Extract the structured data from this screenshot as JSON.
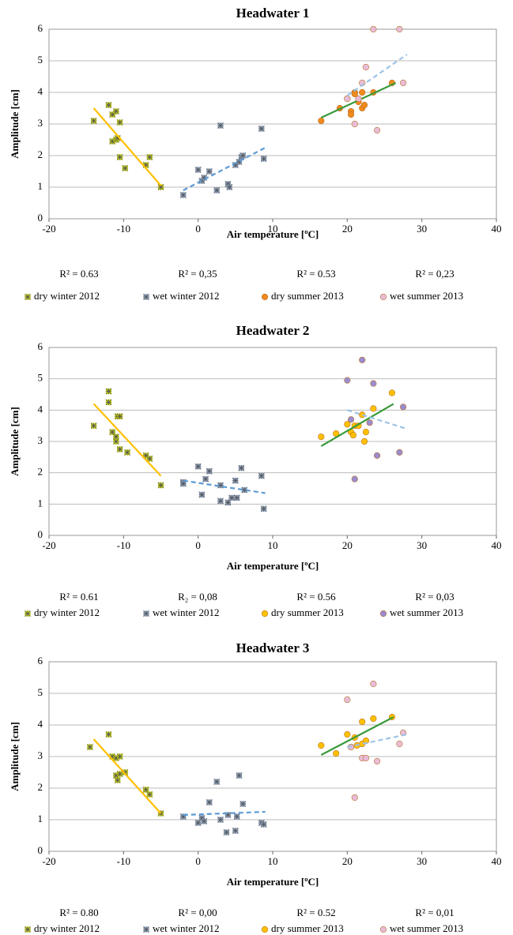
{
  "chart_data": [
    {
      "type": "scatter",
      "title": "Headwater 1",
      "xlabel": "Air temperature [ºC]",
      "ylabel": "Amplitude  [cm]",
      "xlim": [
        -20,
        40
      ],
      "ylim": [
        0,
        6
      ],
      "xticks": [
        -20,
        -10,
        0,
        10,
        20,
        30,
        40
      ],
      "yticks": [
        0,
        1,
        2,
        3,
        4,
        5,
        6
      ],
      "grid": true,
      "series": [
        {
          "name": "dry winter 2012",
          "marker": "asterisk",
          "color": "#c8d400",
          "r2_label": "R² = 0.63",
          "x": [
            -14,
            -12,
            -11.5,
            -11,
            -10.5,
            -11.5,
            -11,
            -10.8,
            -10.5,
            -9.8,
            -7,
            -6.5,
            -5
          ],
          "values": [
            3.1,
            3.6,
            3.3,
            3.4,
            3.05,
            2.45,
            2.5,
            2.55,
            1.95,
            1.6,
            1.7,
            1.95,
            1.0
          ],
          "trend": {
            "x": [
              -14,
              -5
            ],
            "values": [
              3.5,
              1.05
            ],
            "color": "#ffc000",
            "dashed": false
          }
        },
        {
          "name": "wet winter 2012",
          "marker": "asterisk",
          "color": "#8fa6c8",
          "r2_label": "R² = 0,35",
          "x": [
            -2,
            0,
            0.5,
            0.8,
            1.5,
            2.5,
            3,
            4,
            4.2,
            5,
            5.5,
            5.8,
            6,
            8.5,
            8.8
          ],
          "values": [
            0.75,
            1.55,
            1.2,
            1.3,
            1.5,
            0.9,
            2.95,
            1.1,
            1.0,
            1.7,
            1.8,
            1.95,
            2.0,
            2.85,
            1.9
          ],
          "trend": {
            "x": [
              -2,
              9
            ],
            "values": [
              0.9,
              2.25
            ],
            "color": "#5b9bd5",
            "dashed": true
          }
        },
        {
          "name": "dry summer 2013",
          "marker": "circle",
          "color": "#f08a1c",
          "r2_label": "R² = 0.53",
          "x": [
            16.5,
            19,
            20,
            20.5,
            20.5,
            21,
            21,
            21.5,
            22,
            22,
            22.3,
            23.5,
            26
          ],
          "values": [
            3.1,
            3.5,
            3.8,
            3.4,
            3.3,
            4.0,
            3.95,
            3.7,
            3.5,
            4.0,
            3.6,
            4.0,
            4.3
          ],
          "trend": {
            "x": [
              16.5,
              26.5
            ],
            "values": [
              3.2,
              4.3
            ],
            "color": "#3a9a3a",
            "dashed": false
          }
        },
        {
          "name": "wet summer 2013",
          "marker": "circle",
          "color": "#e8bcd8",
          "r2_label": "R² = 0,23",
          "x": [
            20,
            21,
            21.5,
            22,
            22.5,
            23.5,
            24,
            27,
            27.5
          ],
          "values": [
            3.8,
            3.0,
            3.8,
            4.3,
            4.8,
            6.0,
            2.8,
            6.0,
            4.3
          ],
          "trend": {
            "x": [
              20,
              28
            ],
            "values": [
              3.9,
              5.2
            ],
            "color": "#9dc3e6",
            "dashed": true
          }
        }
      ]
    },
    {
      "type": "scatter",
      "title": "Headwater 2",
      "xlabel": "Air temperature [ºC]",
      "ylabel": "Amplitude  [cm]",
      "xlim": [
        -20,
        40
      ],
      "ylim": [
        0,
        6
      ],
      "xticks": [
        -20,
        -10,
        0,
        10,
        20,
        30,
        40
      ],
      "yticks": [
        0,
        1,
        2,
        3,
        4,
        5,
        6
      ],
      "grid": true,
      "series": [
        {
          "name": "dry winter 2012",
          "marker": "asterisk",
          "color": "#c8d400",
          "r2_label": "R² = 0.61",
          "x": [
            -14,
            -12,
            -12,
            -11.5,
            -11,
            -10.8,
            -10.5,
            -11,
            -10.5,
            -9.5,
            -7,
            -6.5,
            -5
          ],
          "values": [
            3.5,
            4.6,
            4.25,
            3.3,
            3.15,
            3.8,
            3.8,
            3.0,
            2.75,
            2.65,
            2.55,
            2.45,
            1.6
          ],
          "trend": {
            "x": [
              -14,
              -5
            ],
            "values": [
              4.2,
              1.9
            ],
            "color": "#ffc000",
            "dashed": false
          }
        },
        {
          "name": "wet winter 2012",
          "marker": "asterisk",
          "color": "#8fa6c8",
          "r2_label": "R₂ = 0,08",
          "x": [
            -2,
            -2,
            0,
            0.5,
            1,
            1.5,
            3,
            3,
            4,
            4.5,
            5,
            5.2,
            5.8,
            6.2,
            8.5,
            8.8
          ],
          "values": [
            1.7,
            1.65,
            2.2,
            1.3,
            1.8,
            2.05,
            1.1,
            1.6,
            1.05,
            1.2,
            1.75,
            1.2,
            2.15,
            1.45,
            1.9,
            0.85
          ],
          "trend": {
            "x": [
              -2,
              9
            ],
            "values": [
              1.75,
              1.35
            ],
            "color": "#5b9bd5",
            "dashed": true
          }
        },
        {
          "name": "dry summer 2013",
          "marker": "circle",
          "color": "#ffc000",
          "r2_label": "R² = 0.56",
          "x": [
            16.5,
            18.5,
            20,
            20.5,
            20.8,
            21,
            21.5,
            22,
            22.3,
            22.5,
            23.5,
            26
          ],
          "values": [
            3.15,
            3.25,
            3.55,
            3.3,
            3.2,
            3.5,
            3.5,
            3.85,
            3.0,
            3.3,
            4.05,
            4.55
          ],
          "trend": {
            "x": [
              16.5,
              26.2
            ],
            "values": [
              2.85,
              4.2
            ],
            "color": "#3a9a3a",
            "dashed": false
          }
        },
        {
          "name": "wet summer 2013",
          "marker": "circle",
          "color": "#9b8ccf",
          "r2_label": "R² = 0,03",
          "x": [
            20,
            20.5,
            21,
            22,
            23,
            23.5,
            24,
            27,
            27.5
          ],
          "values": [
            4.95,
            3.7,
            1.8,
            5.6,
            3.6,
            4.85,
            2.55,
            2.65,
            4.1
          ],
          "trend": {
            "x": [
              20,
              28
            ],
            "values": [
              4.0,
              3.4
            ],
            "color": "#9dc3e6",
            "dashed": true
          }
        }
      ]
    },
    {
      "type": "scatter",
      "title": "Headwater 3",
      "xlabel": "Air temperature [ºC]",
      "ylabel": "Amplitude  [cm]",
      "xlim": [
        -20,
        40
      ],
      "ylim": [
        0,
        6
      ],
      "xticks": [
        -20,
        -10,
        0,
        10,
        20,
        30,
        40
      ],
      "yticks": [
        0,
        1,
        2,
        3,
        4,
        5,
        6
      ],
      "grid": true,
      "series": [
        {
          "name": "dry winter 2012",
          "marker": "asterisk",
          "color": "#c8d400",
          "r2_label": "R² = 0.80",
          "x": [
            -14.5,
            -12,
            -11.5,
            -11,
            -10.5,
            -11,
            -10.8,
            -10.5,
            -9.8,
            -7,
            -6.5,
            -5
          ],
          "values": [
            3.3,
            3.7,
            3.0,
            2.95,
            3.0,
            2.4,
            2.25,
            2.45,
            2.5,
            1.95,
            1.8,
            1.2
          ],
          "trend": {
            "x": [
              -14,
              -5
            ],
            "values": [
              3.55,
              1.2
            ],
            "color": "#ffc000",
            "dashed": false
          }
        },
        {
          "name": "wet winter 2012",
          "marker": "asterisk",
          "color": "#8fa6c8",
          "r2_label": "R² = 0,00",
          "x": [
            -2,
            0,
            0.5,
            0.8,
            1.5,
            2.5,
            3,
            3.8,
            4,
            5,
            5.2,
            5.5,
            6,
            8.5,
            8.8
          ],
          "values": [
            1.1,
            0.9,
            1.05,
            0.95,
            1.55,
            2.2,
            1.0,
            0.6,
            1.15,
            0.65,
            1.1,
            2.4,
            1.5,
            0.9,
            0.85
          ],
          "trend": {
            "x": [
              -2,
              9
            ],
            "values": [
              1.15,
              1.25
            ],
            "color": "#5b9bd5",
            "dashed": true
          }
        },
        {
          "name": "dry summer 2013",
          "marker": "circle",
          "color": "#ffc000",
          "r2_label": "R² = 0.52",
          "x": [
            16.5,
            18.5,
            20,
            20.5,
            21,
            21.3,
            22,
            22,
            22.5,
            23.5,
            26
          ],
          "values": [
            3.35,
            3.1,
            3.7,
            3.3,
            3.6,
            3.35,
            3.4,
            4.1,
            3.5,
            4.2,
            4.25
          ],
          "trend": {
            "x": [
              16.5,
              26.2
            ],
            "values": [
              3.05,
              4.25
            ],
            "color": "#3a9a3a",
            "dashed": false
          }
        },
        {
          "name": "wet summer 2013",
          "marker": "circle",
          "color": "#e8bcd8",
          "r2_label": "R² = 0,01",
          "x": [
            20,
            20.5,
            21,
            22,
            22.5,
            23.5,
            24,
            27,
            27.5
          ],
          "values": [
            4.8,
            3.3,
            1.7,
            2.95,
            2.95,
            5.3,
            2.85,
            3.4,
            3.75
          ],
          "trend": {
            "x": [
              20,
              28
            ],
            "values": [
              3.3,
              3.7
            ],
            "color": "#9dc3e6",
            "dashed": true
          }
        }
      ]
    }
  ]
}
